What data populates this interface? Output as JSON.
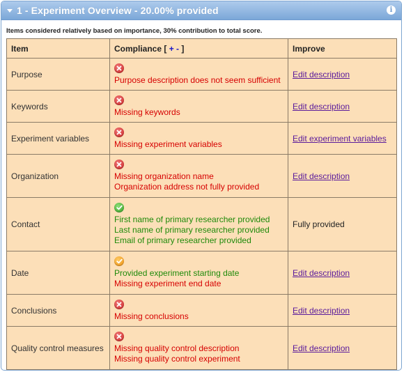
{
  "panel": {
    "title": "1 - Experiment Overview - 20.00% provided",
    "note": "Items considered relatively based on importance, 30% contribution to total score."
  },
  "table": {
    "headers": {
      "item": "Item",
      "compliance_prefix": "Compliance [ ",
      "plus": "+",
      "dash": " - ",
      "close": " ]",
      "improve": "Improve"
    },
    "rows": [
      {
        "item": "Purpose",
        "status": "error",
        "messages": [
          {
            "text": "Purpose description does not seem sufficient",
            "type": "err"
          }
        ],
        "improve": "Edit description",
        "improve_link": true
      },
      {
        "item": "Keywords",
        "status": "error",
        "messages": [
          {
            "text": "Missing keywords",
            "type": "err"
          }
        ],
        "improve": "Edit description",
        "improve_link": true
      },
      {
        "item": "Experiment variables",
        "status": "error",
        "messages": [
          {
            "text": "Missing experiment variables",
            "type": "err"
          }
        ],
        "improve": "Edit experiment variables",
        "improve_link": true
      },
      {
        "item": "Organization",
        "status": "error",
        "messages": [
          {
            "text": "Missing organization name",
            "type": "err"
          },
          {
            "text": "Organization address not fully provided",
            "type": "err"
          }
        ],
        "improve": "Edit description",
        "improve_link": true
      },
      {
        "item": "Contact",
        "status": "ok",
        "messages": [
          {
            "text": "First name of primary researcher provided",
            "type": "ok"
          },
          {
            "text": "Last name of primary researcher provided",
            "type": "ok"
          },
          {
            "text": "Email of primary researcher provided",
            "type": "ok"
          }
        ],
        "improve": "Fully provided",
        "improve_link": false
      },
      {
        "item": "Date",
        "status": "warn",
        "messages": [
          {
            "text": "Provided experiment starting date",
            "type": "ok"
          },
          {
            "text": "Missing experiment end date",
            "type": "err"
          }
        ],
        "improve": "Edit description",
        "improve_link": true
      },
      {
        "item": "Conclusions",
        "status": "error",
        "messages": [
          {
            "text": "Missing conclusions",
            "type": "err"
          }
        ],
        "improve": "Edit description",
        "improve_link": true
      },
      {
        "item": "Quality control measures",
        "status": "error",
        "messages": [
          {
            "text": "Missing quality control description",
            "type": "err"
          },
          {
            "text": "Missing quality control experiment",
            "type": "err"
          }
        ],
        "improve": "Edit description",
        "improve_link": true
      }
    ]
  },
  "colors": {
    "header_blue": "#7ba7d8",
    "table_bg": "#fcdfb8",
    "error_text": "#d60000",
    "ok_text": "#1f8a0a",
    "link": "#5a1a9b",
    "plus": "#1515c8"
  },
  "icons": {
    "toggle": "triangle-down-icon",
    "info": "info-icon",
    "error": "error-x-icon",
    "ok": "check-icon",
    "warn": "partial-check-icon"
  }
}
